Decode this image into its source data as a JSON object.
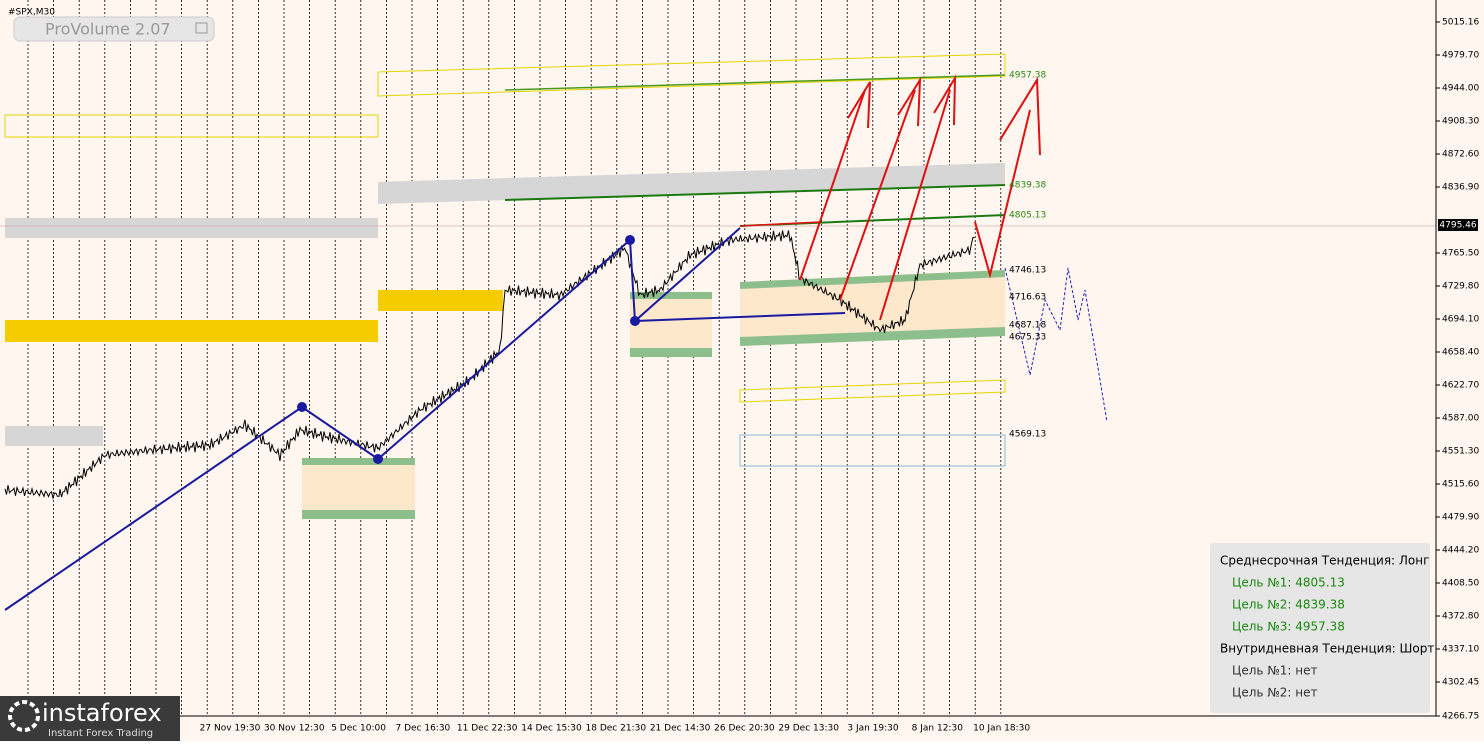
{
  "header": {
    "symbol": "#SPX,M30",
    "indicator": "ProVolume 2.07"
  },
  "price_axis": {
    "labels": [
      "5015.16",
      "4979.70",
      "4944.00",
      "4908.30",
      "4872.60",
      "4836.90",
      "4765.50",
      "4729.80",
      "4694.10",
      "4658.40",
      "4622.70",
      "4587.00",
      "4551.30",
      "4515.60",
      "4479.90",
      "4444.20",
      "4408.50",
      "4372.80",
      "4337.10",
      "4302.45",
      "4266.75"
    ],
    "current_price": "4795.46"
  },
  "time_axis": {
    "labels": [
      "27 Nov 19:30",
      "30 Nov 12:30",
      "5 Dec 10:00",
      "7 Dec 16:30",
      "11 Dec 22:30",
      "14 Dec 15:30",
      "18 Dec 21:30",
      "21 Dec 14:30",
      "26 Dec 20:30",
      "29 Dec 13:30",
      "3 Jan 19:30",
      "8 Jan 12:30",
      "10 Jan 18:30"
    ]
  },
  "levels": [
    "4957.38",
    "4839.38",
    "4805.13",
    "4746.13",
    "4716.63",
    "4687.18",
    "4675.33",
    "4569.13"
  ],
  "panel": {
    "lines": [
      "Среднесрочная Тенденция: Лонг",
      "Цель №1: 4805.13",
      "Цель №2: 4839.38",
      "Цель №3: 4957.38",
      "Внутридневная Тенденция: Шорт",
      "Цель №1: нет",
      "Цель №2: нет"
    ]
  },
  "logo": {
    "name": "instaforex",
    "tagline": "Instant Forex Trading"
  }
}
